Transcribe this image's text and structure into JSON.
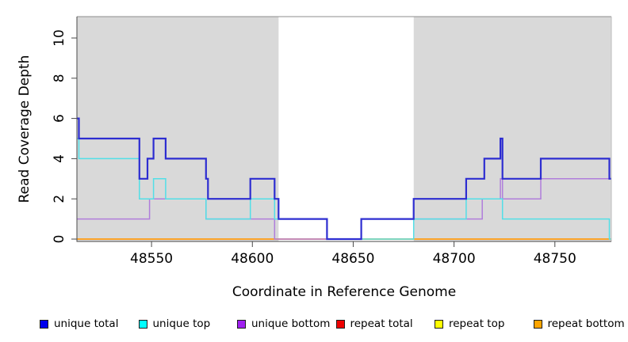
{
  "chart_data": {
    "type": "line",
    "style": "step",
    "title": "",
    "xlabel": "Coordinate in Reference Genome",
    "ylabel": "Read Coverage Depth",
    "xlim": [
      48513,
      48778
    ],
    "ylim": [
      0,
      11.1
    ],
    "grid": false,
    "legend_position": "bottom",
    "background": "#d9d9d9",
    "highlight_band": {
      "x0": 48613,
      "x1": 48680,
      "color": "#ffffff"
    },
    "x_axis": {
      "tick_values": [
        48550,
        48600,
        48650,
        48700,
        48750
      ],
      "tick_labels": [
        "48550",
        "48600",
        "48650",
        "48700",
        "48750"
      ]
    },
    "y_axis": {
      "tick_values": [
        0,
        2,
        4,
        6,
        8,
        10
      ],
      "tick_labels": [
        "0",
        "2",
        "4",
        "6",
        "8",
        "10"
      ]
    },
    "z_order": [
      3,
      4,
      5,
      2,
      1,
      0
    ],
    "series": [
      {
        "name": "unique total",
        "color": "#2d2dd1",
        "legend_color": "#0000ee",
        "width": 2.2,
        "points": [
          [
            48513,
            6
          ],
          [
            48514,
            5
          ],
          [
            48544,
            3
          ],
          [
            48548,
            4
          ],
          [
            48551,
            5
          ],
          [
            48557,
            4
          ],
          [
            48577,
            3
          ],
          [
            48578,
            2
          ],
          [
            48599,
            3
          ],
          [
            48611,
            2
          ],
          [
            48613,
            1
          ],
          [
            48637,
            0
          ],
          [
            48654,
            1
          ],
          [
            48680,
            2
          ],
          [
            48706,
            3
          ],
          [
            48715,
            4
          ],
          [
            48723,
            5
          ],
          [
            48724,
            3
          ],
          [
            48743,
            4
          ],
          [
            48777,
            3
          ],
          [
            48778,
            3
          ]
        ]
      },
      {
        "name": "unique top",
        "color": "#52dfe7",
        "legend_color": "#00ffff",
        "width": 1.5,
        "points": [
          [
            48513,
            5
          ],
          [
            48514,
            4
          ],
          [
            48544,
            2
          ],
          [
            48551,
            3
          ],
          [
            48557,
            2
          ],
          [
            48577,
            1
          ],
          [
            48599,
            2
          ],
          [
            48611,
            1
          ],
          [
            48637,
            0
          ],
          [
            48680,
            1
          ],
          [
            48706,
            2
          ],
          [
            48724,
            1
          ],
          [
            48777,
            0
          ],
          [
            48778,
            0
          ]
        ]
      },
      {
        "name": "unique bottom",
        "color": "#b07edb",
        "legend_color": "#a020f0",
        "width": 1.5,
        "points": [
          [
            48513,
            1
          ],
          [
            48549,
            2
          ],
          [
            48577,
            1
          ],
          [
            48611,
            0
          ],
          [
            48654,
            1
          ],
          [
            48714,
            2
          ],
          [
            48723,
            3
          ],
          [
            48724,
            2
          ],
          [
            48743,
            3
          ],
          [
            48778,
            3
          ]
        ]
      },
      {
        "name": "repeat total",
        "color": "#cf2a2a",
        "legend_color": "#ee0000",
        "width": 1.3,
        "points": [
          [
            48513,
            0
          ],
          [
            48778,
            0
          ]
        ]
      },
      {
        "name": "repeat top",
        "color": "#e8e832",
        "legend_color": "#ffff00",
        "width": 1.3,
        "points": [
          [
            48513,
            0
          ],
          [
            48778,
            0
          ]
        ]
      },
      {
        "name": "repeat bottom",
        "color": "#ff9f1a",
        "legend_color": "#ffa500",
        "width": 1.8,
        "points": [
          [
            48513,
            0
          ],
          [
            48778,
            0
          ]
        ]
      }
    ]
  }
}
